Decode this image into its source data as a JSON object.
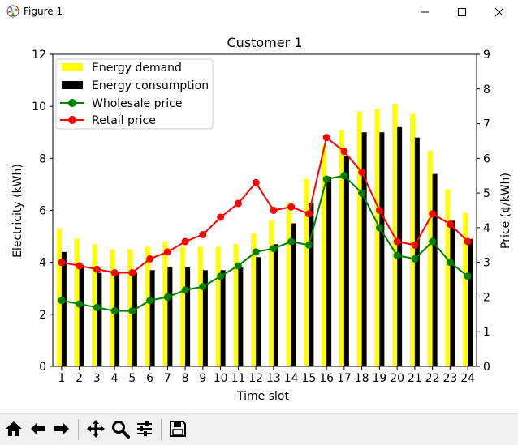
{
  "window": {
    "title": "Figure 1",
    "icons": [
      "matplotlib-logo-icon",
      "minimize-icon",
      "maximize-icon",
      "close-icon"
    ]
  },
  "toolbar": {
    "icons": [
      "home-icon",
      "back-arrow-icon",
      "forward-arrow-icon",
      "pan-icon",
      "zoom-icon",
      "subplots-config-icon",
      "save-icon"
    ]
  },
  "chart_data": {
    "type": "bar",
    "title": "Customer 1",
    "xlabel": "Time slot",
    "ylabel": "Electricity (kWh)",
    "y2label": "Price (¢/kWh)",
    "categories": [
      "1",
      "2",
      "3",
      "4",
      "5",
      "6",
      "7",
      "8",
      "9",
      "10",
      "11",
      "12",
      "13",
      "14",
      "15",
      "16",
      "17",
      "18",
      "19",
      "20",
      "21",
      "22",
      "23",
      "24"
    ],
    "ylim": [
      0,
      12
    ],
    "y2lim": [
      0,
      9
    ],
    "yticks": [
      "0",
      "2",
      "4",
      "6",
      "8",
      "10",
      "12"
    ],
    "y2ticks": [
      "0",
      "1",
      "2",
      "3",
      "4",
      "5",
      "6",
      "7",
      "8",
      "9"
    ],
    "grid": false,
    "legend_position": "top-left",
    "series": [
      {
        "name": "Energy demand",
        "type": "bar",
        "axis": "left",
        "color": "#ffff00",
        "values": [
          5.3,
          4.9,
          4.7,
          4.5,
          4.5,
          4.6,
          4.8,
          4.6,
          4.6,
          4.6,
          4.7,
          5.1,
          5.6,
          6.3,
          7.2,
          8.5,
          9.1,
          9.8,
          9.9,
          10.1,
          9.7,
          8.3,
          6.8,
          5.9
        ]
      },
      {
        "name": "Energy consumption",
        "type": "bar",
        "axis": "left",
        "color": "#000000",
        "values": [
          4.4,
          3.9,
          3.6,
          3.6,
          3.6,
          3.7,
          3.8,
          3.8,
          3.7,
          3.7,
          3.8,
          4.2,
          4.7,
          5.5,
          6.3,
          7.3,
          8.1,
          9.0,
          9.0,
          9.2,
          8.8,
          7.4,
          5.6,
          4.9
        ]
      },
      {
        "name": "Wholesale price",
        "type": "line",
        "axis": "right",
        "color": "#008000",
        "values": [
          1.9,
          1.8,
          1.7,
          1.6,
          1.6,
          1.9,
          2.0,
          2.2,
          2.3,
          2.6,
          2.9,
          3.3,
          3.4,
          3.6,
          3.5,
          5.4,
          5.5,
          5.0,
          4.0,
          3.2,
          3.1,
          3.6,
          3.0,
          2.6
        ]
      },
      {
        "name": "Retail price",
        "type": "line",
        "axis": "right",
        "color": "#ff0000",
        "values": [
          3.0,
          2.9,
          2.8,
          2.7,
          2.7,
          3.1,
          3.3,
          3.6,
          3.8,
          4.3,
          4.7,
          5.3,
          4.5,
          4.6,
          4.4,
          6.6,
          6.2,
          5.6,
          4.5,
          3.6,
          3.5,
          4.4,
          4.1,
          3.6
        ]
      }
    ]
  }
}
